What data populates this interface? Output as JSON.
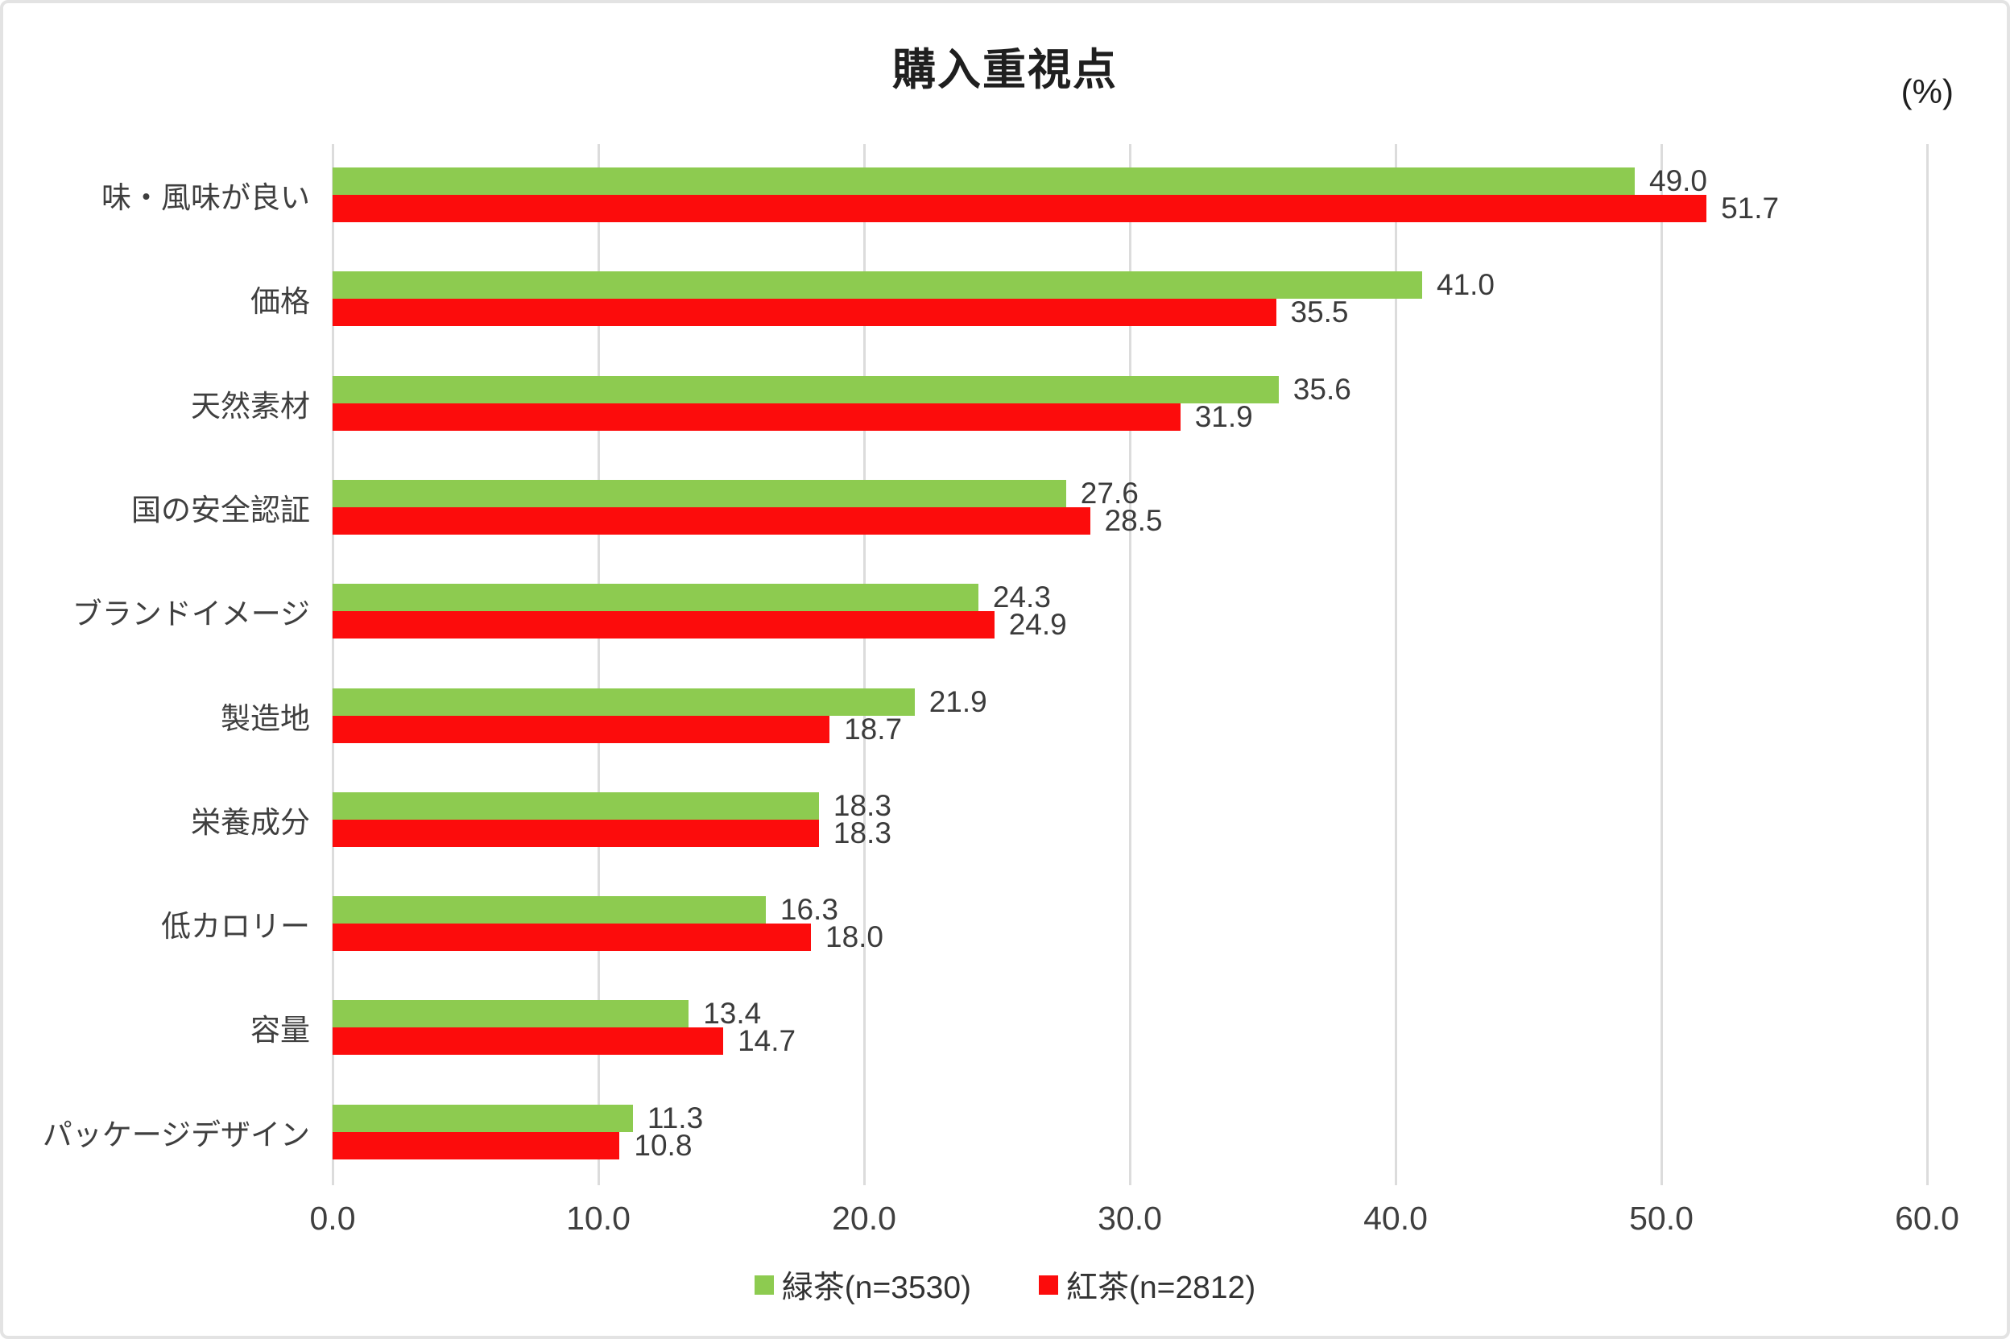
{
  "chart_data": {
    "type": "bar",
    "orientation": "horizontal",
    "title": "購入重視点",
    "unit_label": "(%)",
    "categories": [
      "味・風味が良い",
      "価格",
      "天然素材",
      "国の安全認証",
      "ブランドイメージ",
      "製造地",
      "栄養成分",
      "低カロリー",
      "容量",
      "パッケージデザイン"
    ],
    "series": [
      {
        "name": "緑茶(n=3530)",
        "color": "#8dcb50",
        "values": [
          49.0,
          41.0,
          35.6,
          27.6,
          24.3,
          21.9,
          18.3,
          16.3,
          13.4,
          11.3
        ]
      },
      {
        "name": "紅茶(n=2812)",
        "color": "#fc0c0c",
        "values": [
          51.7,
          35.5,
          31.9,
          28.5,
          24.9,
          18.7,
          18.3,
          18.0,
          14.7,
          10.8
        ]
      }
    ],
    "xlim": [
      0,
      60
    ],
    "xticks": [
      "0.0",
      "10.0",
      "20.0",
      "30.0",
      "40.0",
      "50.0",
      "60.0"
    ],
    "xtick_values": [
      0,
      10,
      20,
      30,
      40,
      50,
      60
    ],
    "grid": true,
    "gridline_color": "#dcdcdc",
    "value_labels": true,
    "legend_position": "bottom"
  }
}
